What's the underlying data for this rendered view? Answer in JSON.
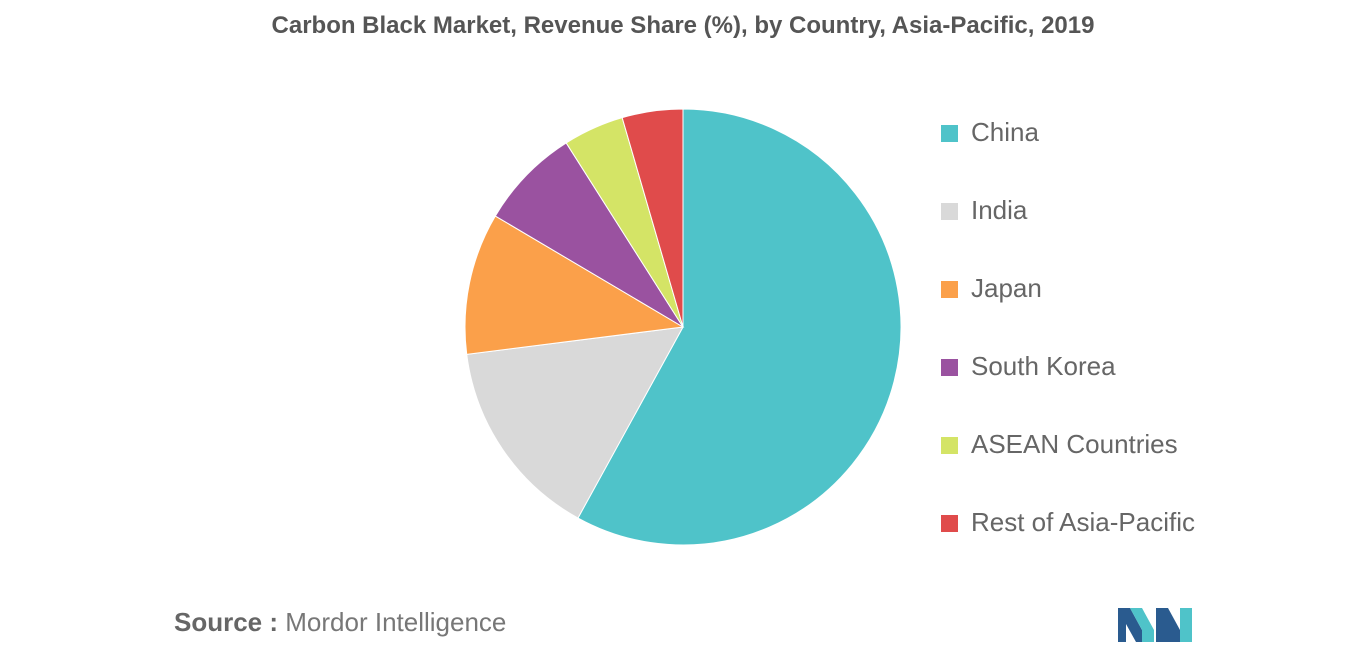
{
  "chart_data": {
    "type": "pie",
    "title": "Carbon Black Market, Revenue Share (%), by Country, Asia-Pacific, 2019",
    "legend_position": "right",
    "categories": [
      "China",
      "India",
      "Japan",
      "South Korea",
      "ASEAN Countries",
      "Rest of Asia-Pacific"
    ],
    "values": [
      58,
      15,
      10.5,
      7.5,
      4.5,
      4.5
    ],
    "colors": [
      "#4fc3c9",
      "#d9d9d9",
      "#fba04a",
      "#9a52a0",
      "#d4e466",
      "#e04b4b"
    ]
  },
  "source": {
    "label": "Source :",
    "text": "Mordor Intelligence"
  },
  "logo": {
    "icon": "mordor-intelligence-logo",
    "colors": [
      "#2a5b8f",
      "#4fc3c9"
    ]
  }
}
